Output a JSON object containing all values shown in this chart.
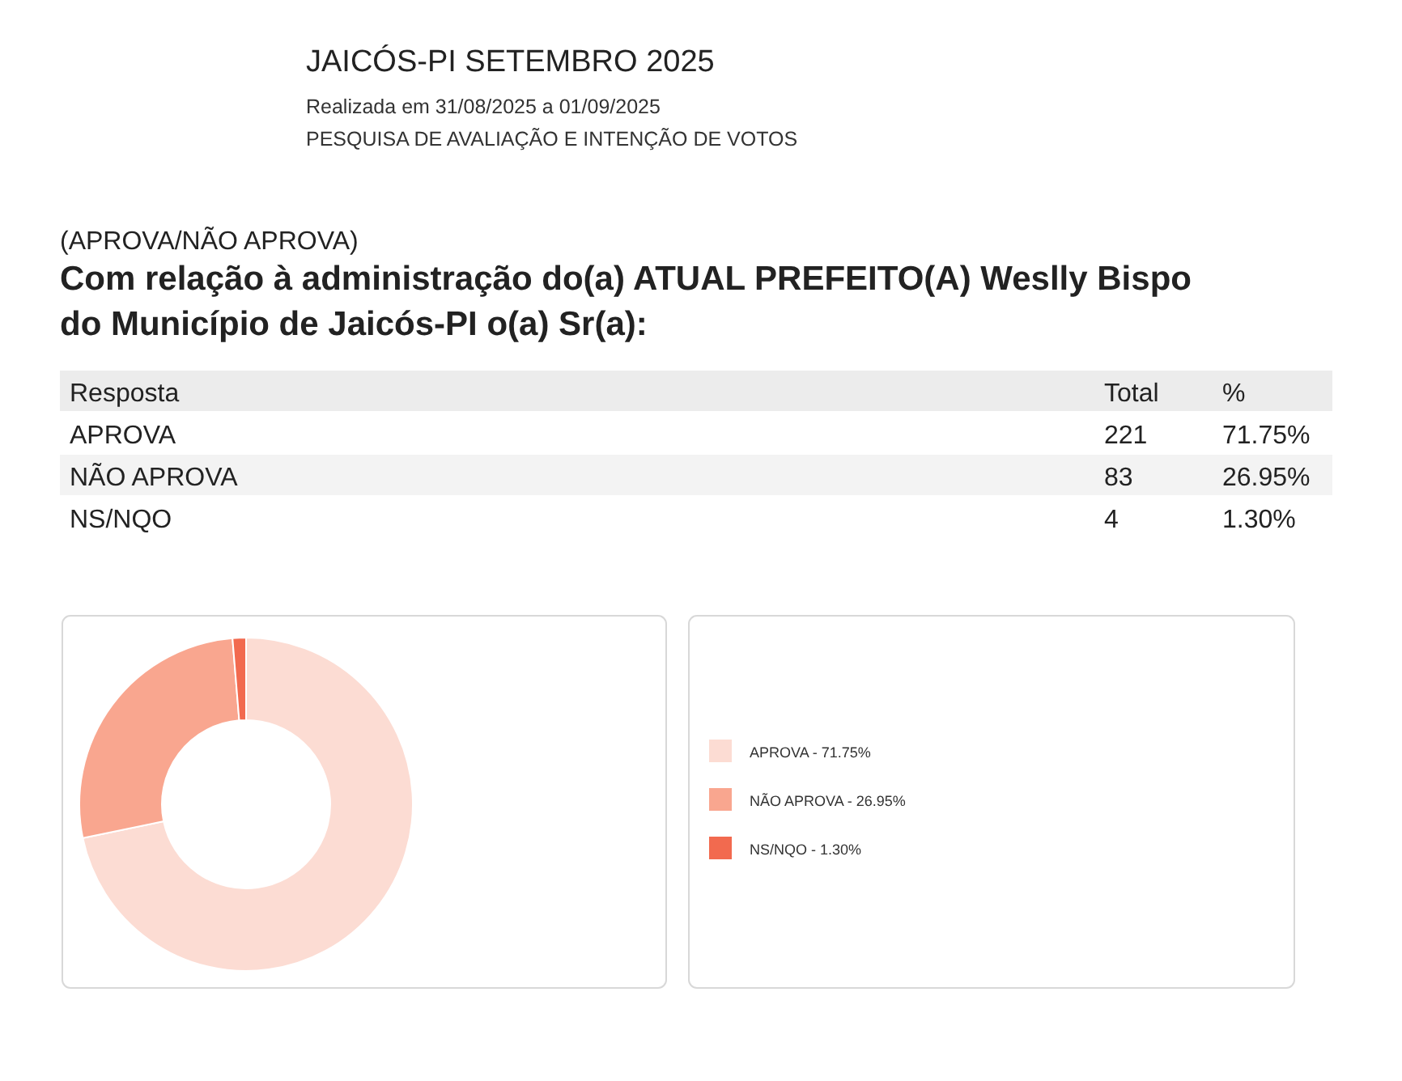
{
  "chart_data": [
    {
      "type": "other",
      "title": "JAICÓS-PI SETEMBRO 2025",
      "subtitle": "Realizada em 31/08/2025 a 01/09/2025",
      "annotations": [
        "PESQUISA DE AVALIAÇÃO E INTENÇÃO DE VOTOS",
        "(APROVA/NÃO APROVA)",
        "Com relação à administração do(a) ATUAL PREFEITO(A) Weslly Bispo",
        "do Município de Jaicós-PI o(a) Sr(a):",
        "Resposta",
        "Total",
        "%",
        "APROVA",
        "221",
        "71.75%",
        "NÃO APROVA",
        "83",
        "26.95%",
        "NS/NQO",
        "4",
        "1.30%"
      ]
    },
    {
      "type": "donut",
      "categories": [
        "APROVA - 71.75%",
        "NÃO APROVA - 26.95%",
        "NS/NQO - 1.30%"
      ],
      "values": [
        71.75,
        26.95,
        1.3
      ],
      "colors": [
        "#fcdcd3",
        "#f9a68f",
        "#f26a4f"
      ],
      "legend": "right"
    }
  ]
}
